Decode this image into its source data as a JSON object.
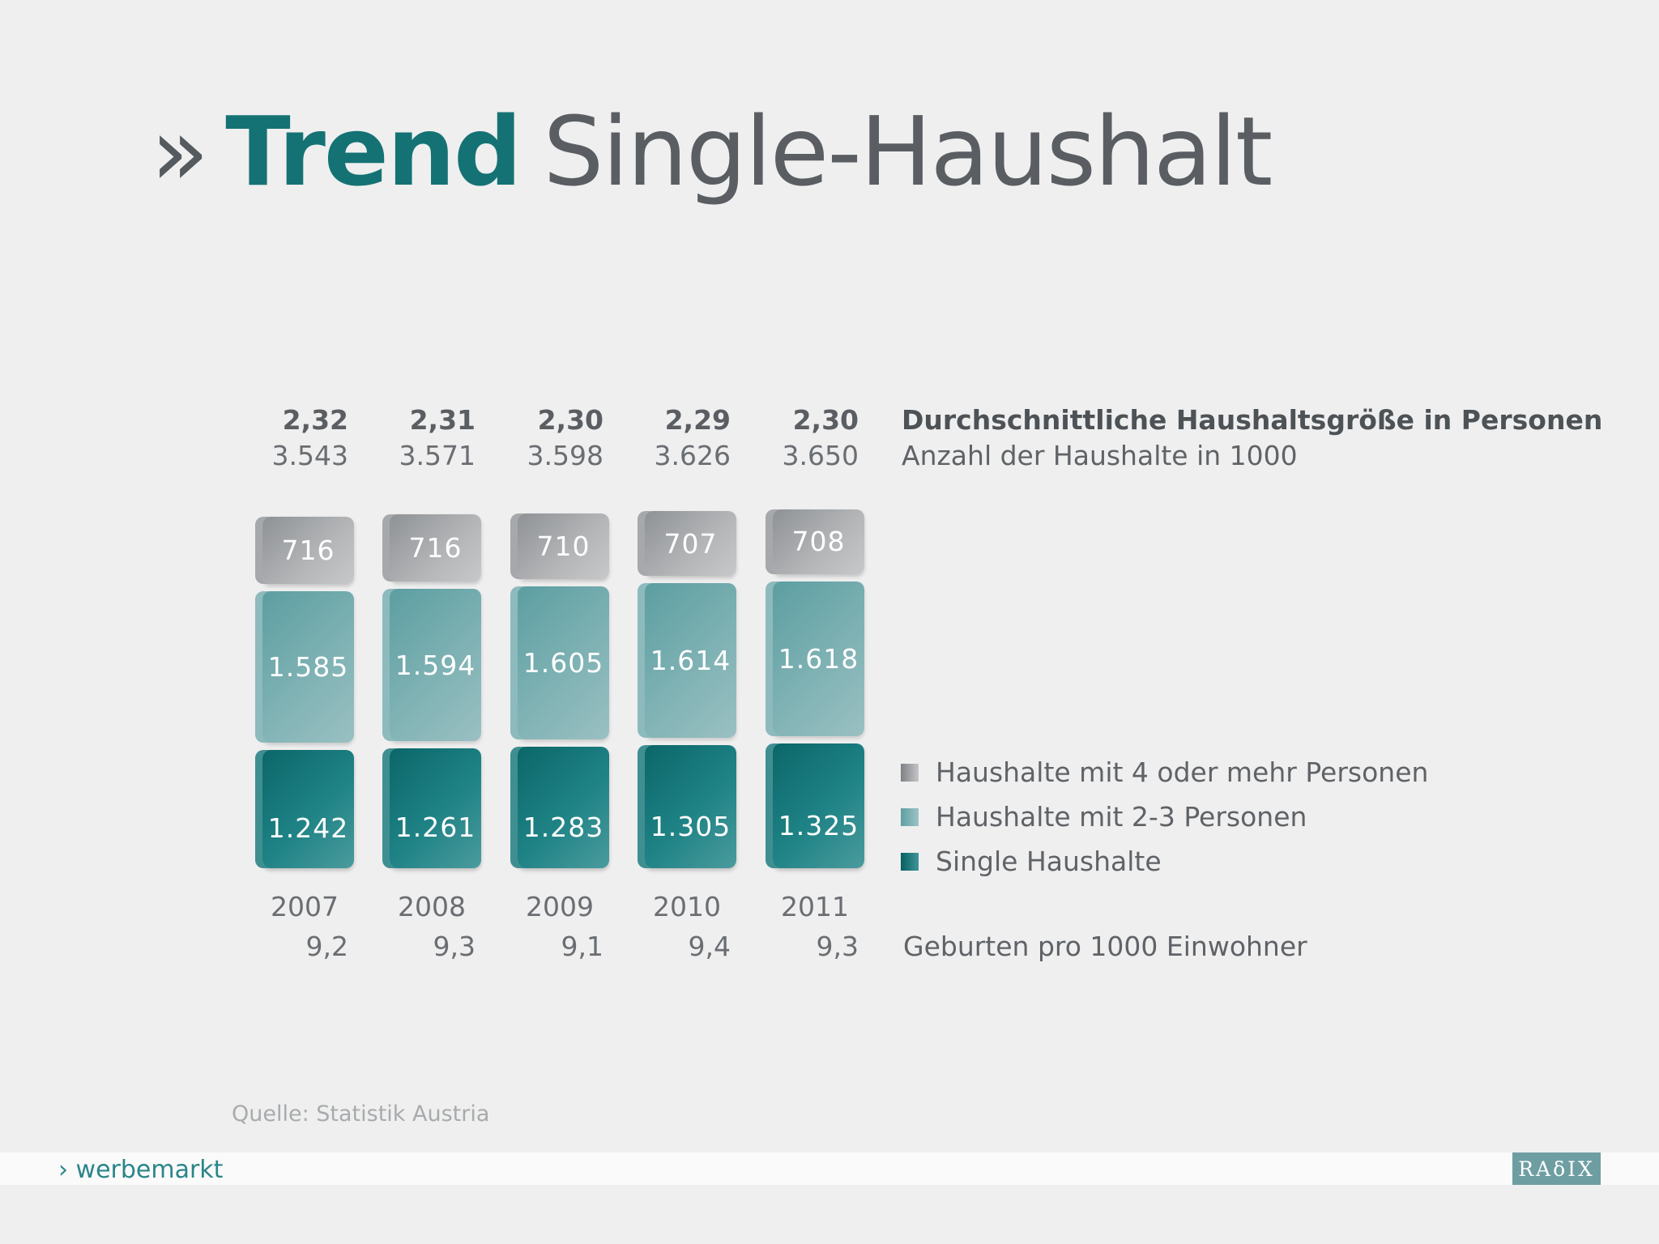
{
  "title": {
    "prefix": "»",
    "highlight": "Trend",
    "rest": "Single-Haushalt"
  },
  "colors": {
    "accent": "#157274",
    "big_households": "#a3a5a8",
    "mid_households": "#7db0b2",
    "single_households": "#13777a"
  },
  "row_labels": {
    "avg_size": "Durchschnittliche Haushaltsgröße in Personen",
    "households": "Anzahl der Haushalte in 1000",
    "births": "Geburten pro 1000 Einwohner"
  },
  "chart_data": {
    "type": "bar",
    "stacked": true,
    "categories": [
      "2007",
      "2008",
      "2009",
      "2010",
      "2011"
    ],
    "series": [
      {
        "name": "Single Haushalte",
        "values": [
          1242,
          1261,
          1283,
          1305,
          1325
        ],
        "labels": [
          "1.242",
          "1.261",
          "1.283",
          "1.305",
          "1.325"
        ]
      },
      {
        "name": "Haushalte mit 2-3 Personen",
        "values": [
          1585,
          1594,
          1605,
          1614,
          1618
        ],
        "labels": [
          "1.585",
          "1.594",
          "1.605",
          "1.614",
          "1.618"
        ]
      },
      {
        "name": "Haushalte mit 4 oder mehr Personen",
        "values": [
          716,
          716,
          710,
          707,
          708
        ],
        "labels": [
          "716",
          "716",
          "710",
          "707",
          "708"
        ]
      }
    ],
    "avg_household_size": [
      "2,32",
      "2,31",
      "2,30",
      "2,29",
      "2,30"
    ],
    "households_total": [
      "3.543",
      "3.571",
      "3.598",
      "3.626",
      "3.650"
    ],
    "births_per_1000": [
      "9,2",
      "9,3",
      "9,1",
      "9,4",
      "9,3"
    ],
    "legend": [
      "Haushalte mit 4 oder mehr Personen",
      "Haushalte mit 2-3 Personen",
      "Single Haushalte"
    ],
    "legend_position": "right",
    "grid": false
  },
  "source": "Quelle: Statistik Austria",
  "footer": {
    "brand": "› werbemarkt",
    "logo": "RAδIX"
  }
}
